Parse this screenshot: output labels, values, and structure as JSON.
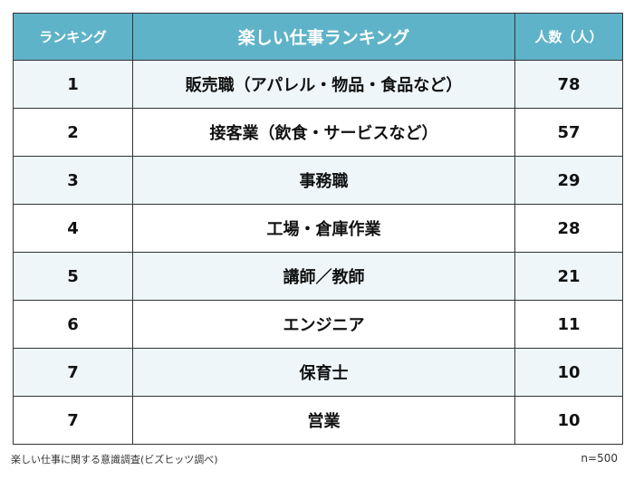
{
  "table": {
    "headers": {
      "rank": "ランキング",
      "job": "楽しい仕事ランキング",
      "count": "人数（人）"
    },
    "header_color": "#5fb3c9",
    "stripe_color": "#eef6fa",
    "rows": [
      {
        "rank": "1",
        "job": "販売職（アパレル・物品・食品など）",
        "count": "78"
      },
      {
        "rank": "2",
        "job": "接客業（飲食・サービスなど）",
        "count": "57"
      },
      {
        "rank": "3",
        "job": "事務職",
        "count": "29"
      },
      {
        "rank": "4",
        "job": "工場・倉庫作業",
        "count": "28"
      },
      {
        "rank": "5",
        "job": "講師／教師",
        "count": "21"
      },
      {
        "rank": "6",
        "job": "エンジニア",
        "count": "11"
      },
      {
        "rank": "7",
        "job": "保育士",
        "count": "10"
      },
      {
        "rank": "7",
        "job": "営業",
        "count": "10"
      }
    ]
  },
  "footer": {
    "source": "楽しい仕事に関する意識調査(ビズヒッツ調べ)",
    "sample_size": "n=500"
  }
}
